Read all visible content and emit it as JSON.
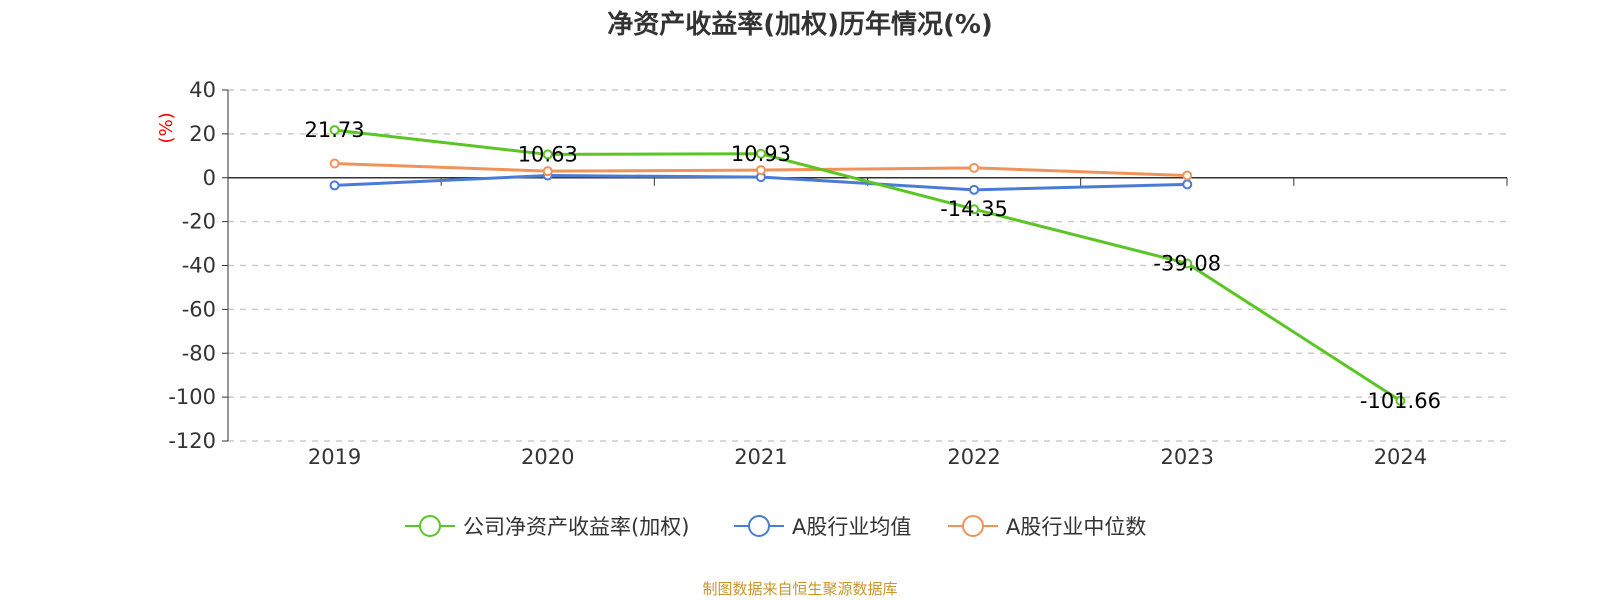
{
  "footer": {
    "source": "制图数据来自恒生聚源数据库"
  },
  "chart_data": {
    "type": "line",
    "title": "净资产收益率(加权)历年情况(%)",
    "ylabel": "(%)",
    "xlabel": "",
    "categories": [
      "2019",
      "2020",
      "2021",
      "2022",
      "2023",
      "2024"
    ],
    "ylim": [
      -120,
      40
    ],
    "yticks": [
      40,
      20,
      0,
      -20,
      -40,
      -60,
      -80,
      -100,
      -120
    ],
    "grid": true,
    "legend_position": "bottom",
    "series": [
      {
        "name": "公司净资产收益率(加权)",
        "color": "#5bc526",
        "values": [
          21.73,
          10.63,
          10.93,
          -14.35,
          -39.08,
          -101.66
        ],
        "labels": [
          "21.73",
          "10.63",
          "10.93",
          "-14.35",
          "-39.08",
          "-101.66"
        ]
      },
      {
        "name": "A股行业均值",
        "color": "#4a7bd6",
        "values": [
          -3.5,
          1.0,
          0.3,
          -5.5,
          -3.0,
          null
        ]
      },
      {
        "name": "A股行业中位数",
        "color": "#f0935a",
        "values": [
          6.5,
          3.0,
          3.5,
          4.5,
          1.0,
          null
        ]
      }
    ],
    "colors": {
      "ylabel": "#ff0000",
      "axis": "#333333",
      "grid": "#cccccc"
    }
  }
}
